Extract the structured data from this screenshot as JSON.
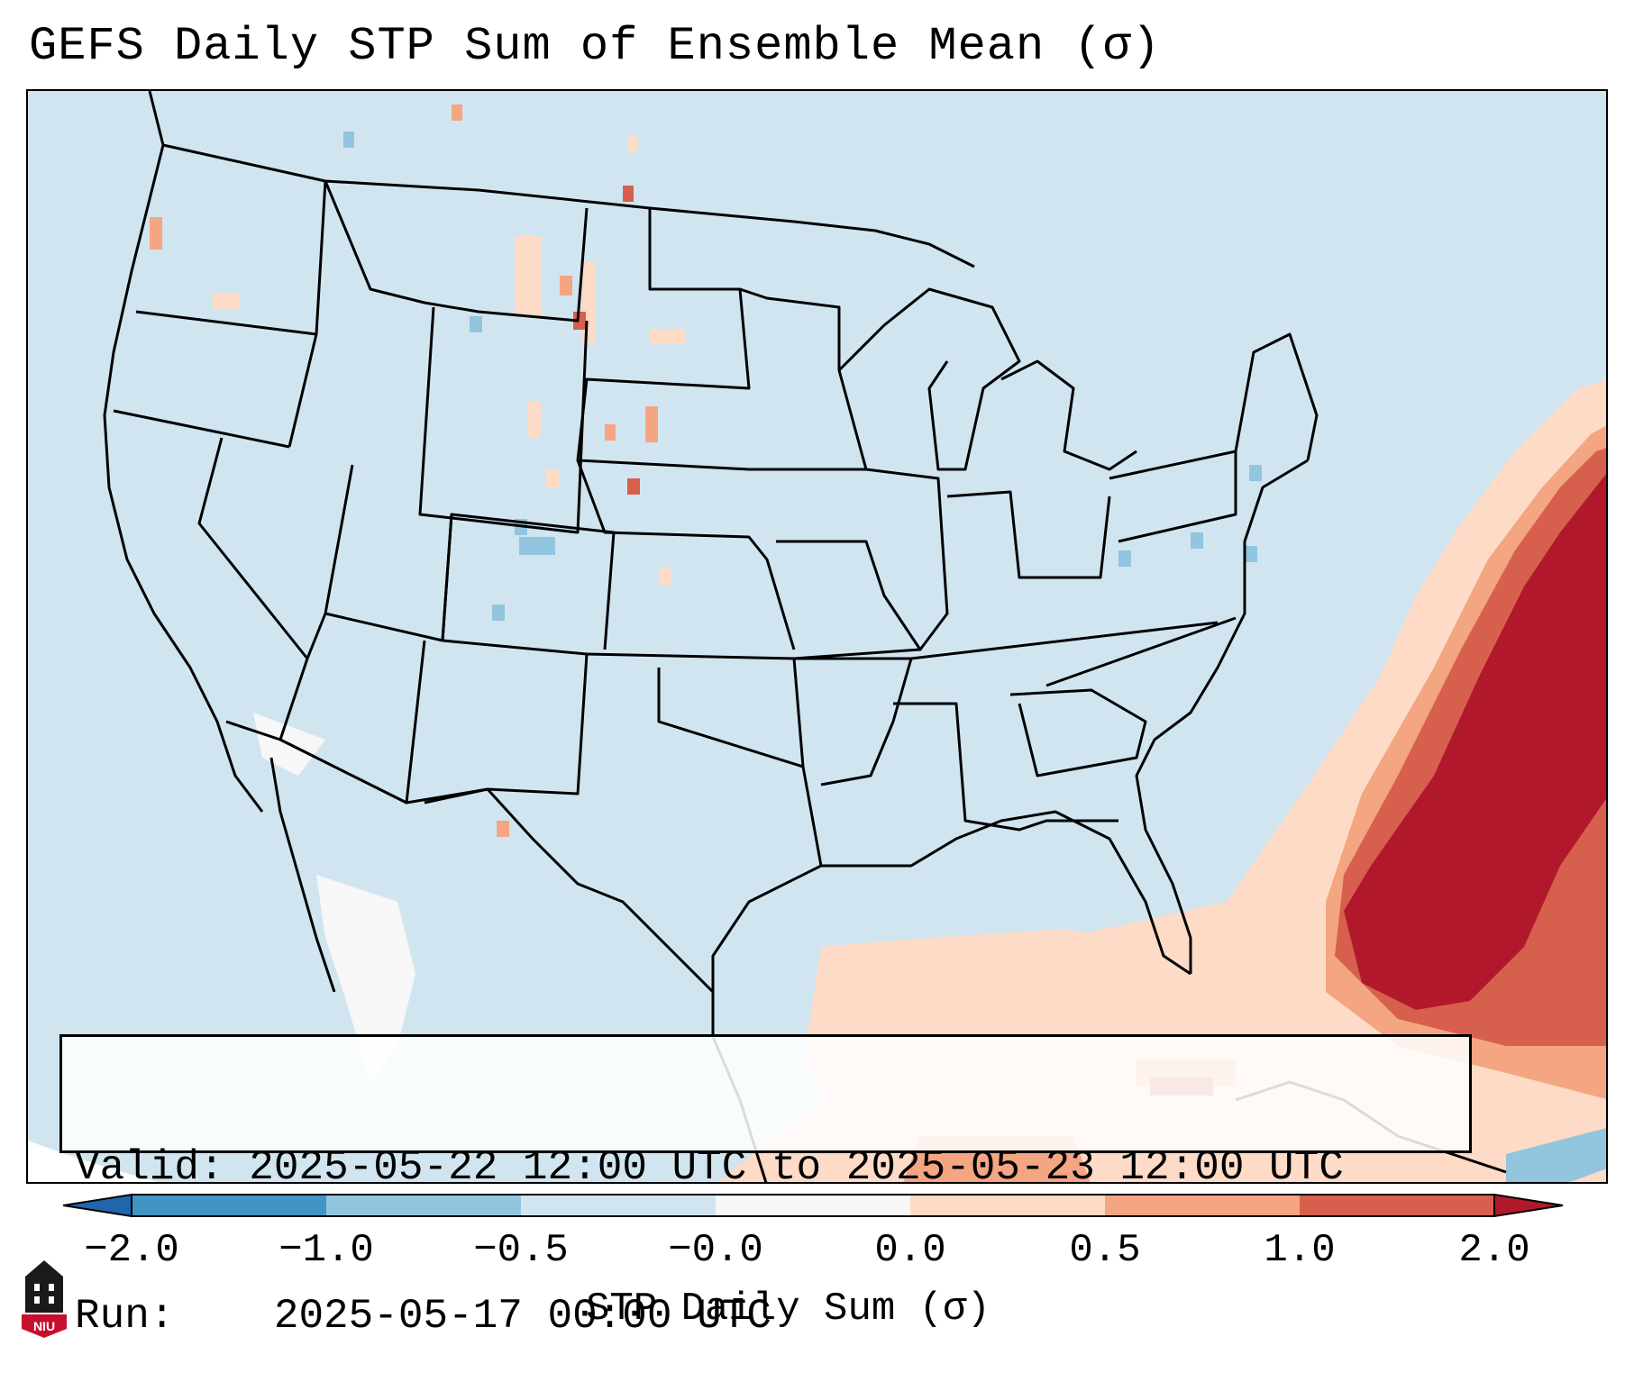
{
  "title": "GEFS Daily STP Sum of Ensemble Mean (σ)",
  "info_box": {
    "valid_label": "Valid:",
    "valid_value": "2025-05-22 12:00 UTC to 2025-05-23 12:00 UTC",
    "run_label": "Run:",
    "run_value": "2025-05-17 00:00 UTC"
  },
  "colorbar": {
    "label": "STP Daily Sum (σ)",
    "ticks": [
      "−2.0",
      "−1.0",
      "−0.5",
      "−0.0",
      "0.0",
      "0.5",
      "1.0",
      "2.0"
    ],
    "bin_colors": [
      "#2166ac",
      "#4393c3",
      "#92c5de",
      "#d1e5f0",
      "#f7f7f7",
      "#fddbc7",
      "#f4a582",
      "#d6604d",
      "#b2182b"
    ],
    "extend": "both"
  },
  "map": {
    "projection": "Lambert Conformal (CONUS)",
    "background_value_color": "#d1e5f0",
    "highlight_region": "Atlantic coast / Gulf of Mexico positive STP anomalies, max > 2.0σ off Southeast coast"
  },
  "logo": {
    "text": "NIU",
    "color": "#c8102e"
  }
}
